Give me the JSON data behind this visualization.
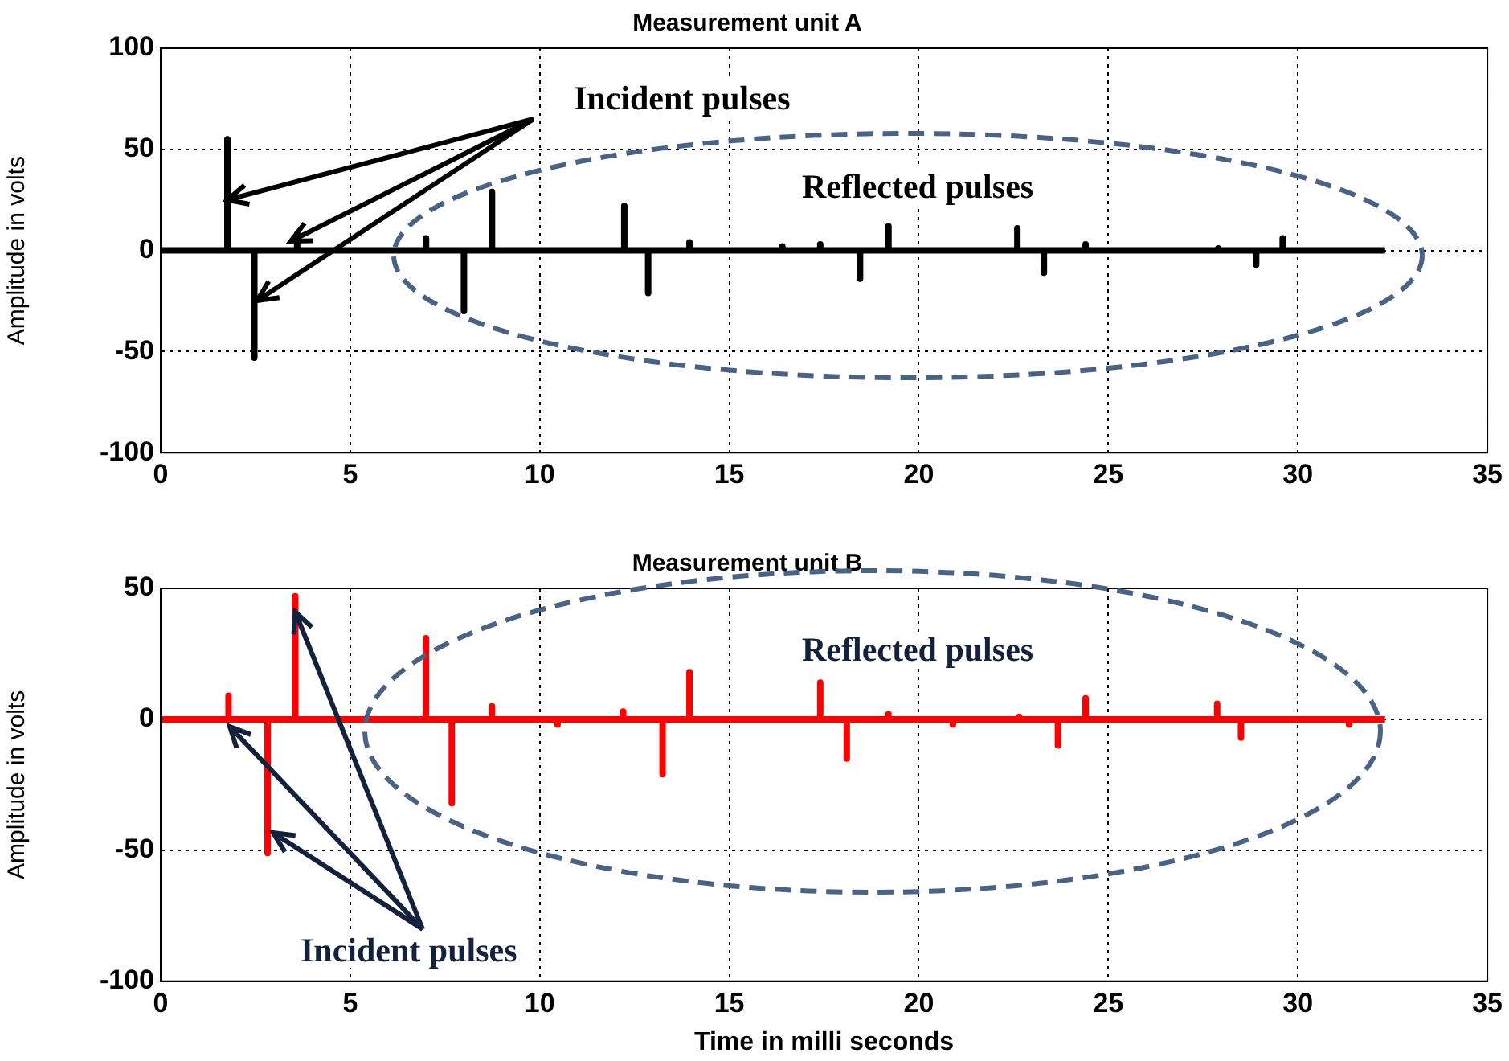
{
  "chart_data": [
    {
      "type": "line",
      "title": "Measurement unit A",
      "ylabel": "Amplitude in volts",
      "xlim": [
        0,
        35
      ],
      "xticks": [
        0,
        5,
        10,
        15,
        20,
        25,
        30,
        35
      ],
      "ylim": [
        -100,
        100
      ],
      "yticks": [
        -100,
        -50,
        0,
        50,
        100
      ],
      "grid": true,
      "marker": "none",
      "annotations": [
        {
          "text": "Incident pulses",
          "x": 1.76,
          "y": 25
        },
        "Reflected pulses"
      ],
      "series": [
        {
          "color": "#000000",
          "x": [
            0,
            1.76,
            1.76,
            1.76,
            2.47,
            2.47,
            2.47,
            3.6,
            3.6,
            3.6,
            7.0,
            7.0,
            7.0,
            8.0,
            8.0,
            8.0,
            8.74,
            8.74,
            8.74,
            12.23,
            12.23,
            12.23,
            12.86,
            12.86,
            12.86,
            13.95,
            13.95,
            13.95,
            16.4,
            16.4,
            16.4,
            17.4,
            17.4,
            17.4,
            18.45,
            18.45,
            18.45,
            19.2,
            19.2,
            19.2,
            22.6,
            22.6,
            22.6,
            23.3,
            23.3,
            23.3,
            24.4,
            24.4,
            24.4,
            27.9,
            27.9,
            27.9,
            28.9,
            28.9,
            28.9,
            29.6,
            29.6,
            29.6,
            32.3
          ],
          "values": [
            0,
            0,
            55,
            0,
            0,
            -53,
            0,
            0,
            8,
            0,
            0,
            6,
            0,
            0,
            -30,
            0,
            0,
            29,
            0,
            0,
            22,
            0,
            0,
            -21,
            0,
            0,
            4,
            0,
            0,
            2,
            0,
            0,
            3,
            0,
            0,
            -14,
            0,
            0,
            12,
            0,
            0,
            11,
            0,
            0,
            -11,
            0,
            0,
            3,
            0,
            0,
            1,
            0,
            0,
            -7,
            0,
            0,
            6,
            0,
            0
          ]
        }
      ]
    },
    {
      "type": "line",
      "title": "Measurement unit B",
      "xlabel": "Time in milli seconds",
      "ylabel": "Amplitude in volts",
      "xlim": [
        0,
        35
      ],
      "xticks": [
        0,
        5,
        10,
        15,
        20,
        25,
        30,
        35
      ],
      "ylim": [
        -100,
        50
      ],
      "yticks": [
        -100,
        -50,
        0,
        50
      ],
      "grid": true,
      "marker": "none",
      "annotations": [
        "Reflected pulses",
        {
          "text": "Incident pulses",
          "x": 3.55,
          "y": 41
        }
      ],
      "series": [
        {
          "color": "#ff0000",
          "x": [
            0,
            1.79,
            1.79,
            1.79,
            2.82,
            2.82,
            2.82,
            3.55,
            3.55,
            3.55,
            7.0,
            7.0,
            7.0,
            7.68,
            7.68,
            7.68,
            8.74,
            8.74,
            8.74,
            10.47,
            10.47,
            10.47,
            12.2,
            12.2,
            12.2,
            13.24,
            13.24,
            13.24,
            13.95,
            13.95,
            13.95,
            17.4,
            17.4,
            17.4,
            18.1,
            18.1,
            18.1,
            19.2,
            19.2,
            19.2,
            20.9,
            20.9,
            20.9,
            22.65,
            22.65,
            22.65,
            23.67,
            23.67,
            23.67,
            24.4,
            24.4,
            24.4,
            27.87,
            27.87,
            27.87,
            28.5,
            28.5,
            28.5,
            31.35,
            31.35,
            31.35,
            32.3
          ],
          "values": [
            0,
            0,
            9,
            0,
            0,
            -51,
            0,
            0,
            47,
            0,
            0,
            31,
            0,
            0,
            -32,
            0,
            0,
            5,
            0,
            0,
            -2,
            0,
            0,
            3,
            0,
            0,
            -21,
            0,
            0,
            18,
            0,
            0,
            14,
            0,
            0,
            -15,
            0,
            0,
            2,
            0,
            0,
            -2,
            0,
            0,
            1,
            0,
            0,
            -10,
            0,
            0,
            8,
            0,
            0,
            6,
            0,
            0,
            -7,
            0,
            0,
            -2,
            0,
            0
          ]
        }
      ]
    }
  ]
}
